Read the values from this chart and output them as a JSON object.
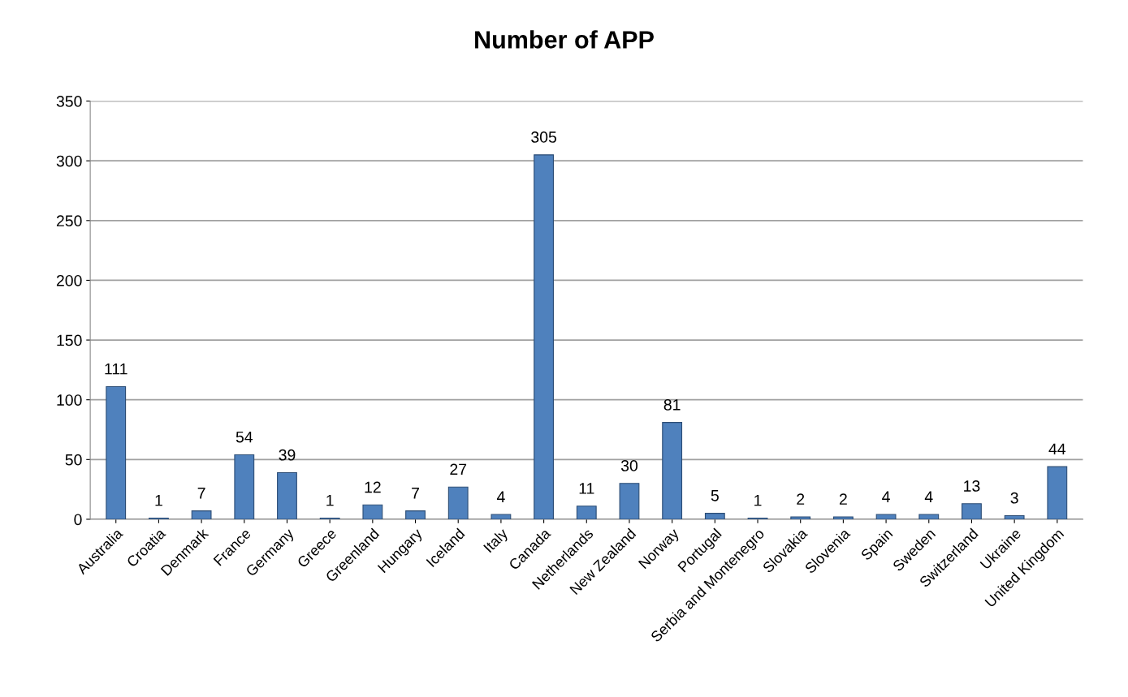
{
  "chart_data": {
    "type": "bar",
    "title": "Number of APP",
    "categories": [
      "Australia",
      "Croatia",
      "Denmark",
      "France",
      "Germany",
      "Greece",
      "Greenland",
      "Hungary",
      "Iceland",
      "Italy",
      "Canada",
      "Netherlands",
      "New Zealand",
      "Norway",
      "Portugal",
      "Serbia and Montenegro",
      "Slovakia",
      "Slovenia",
      "Spain",
      "Sweden",
      "Switzerland",
      "Ukraine",
      "United Kingdom"
    ],
    "values": [
      111,
      1,
      7,
      54,
      39,
      1,
      12,
      7,
      27,
      4,
      305,
      11,
      30,
      81,
      5,
      1,
      2,
      2,
      4,
      4,
      13,
      3,
      44
    ],
    "color": "#4f81bd",
    "ylim": [
      0,
      350
    ],
    "yticks": [
      0,
      50,
      100,
      150,
      200,
      250,
      300,
      350
    ],
    "grid": "y",
    "data_labels": true
  }
}
